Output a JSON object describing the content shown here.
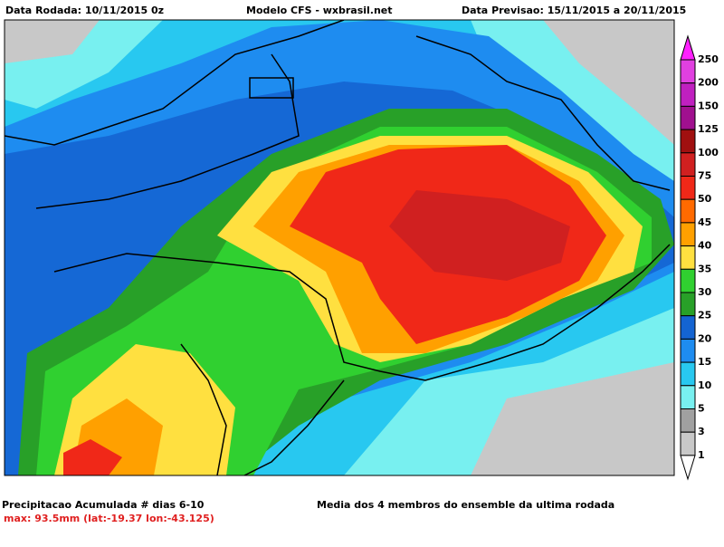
{
  "header": {
    "run": "Data Rodada: 10/11/2015 0z",
    "model": "Modelo CFS - wxbrasil.net",
    "forecast": "Data Previsao: 15/11/2015 a 20/11/2015"
  },
  "colorbar": {
    "levels": [
      250,
      200,
      150,
      125,
      100,
      75,
      50,
      45,
      40,
      35,
      30,
      25,
      20,
      15,
      10,
      5,
      3,
      1
    ],
    "colors": [
      "#ff20ff",
      "#e040e0",
      "#c020c0",
      "#a0108f",
      "#a01010",
      "#d02020",
      "#f02818",
      "#ff6a00",
      "#ffa000",
      "#ffe040",
      "#30d030",
      "#28a028",
      "#1464d2",
      "#1e8cf0",
      "#28c8f0",
      "#78f0f0",
      "#a0a0a0",
      "#c8c8c8",
      "#ffffff"
    ]
  },
  "footer": {
    "variable": "Precipitacao Acumulada # dias 6-10",
    "max": "max: 93.5mm (lat:-19.37 lon:-43.125)",
    "note": "Media dos 4 membros do ensemble da ultima rodada"
  }
}
